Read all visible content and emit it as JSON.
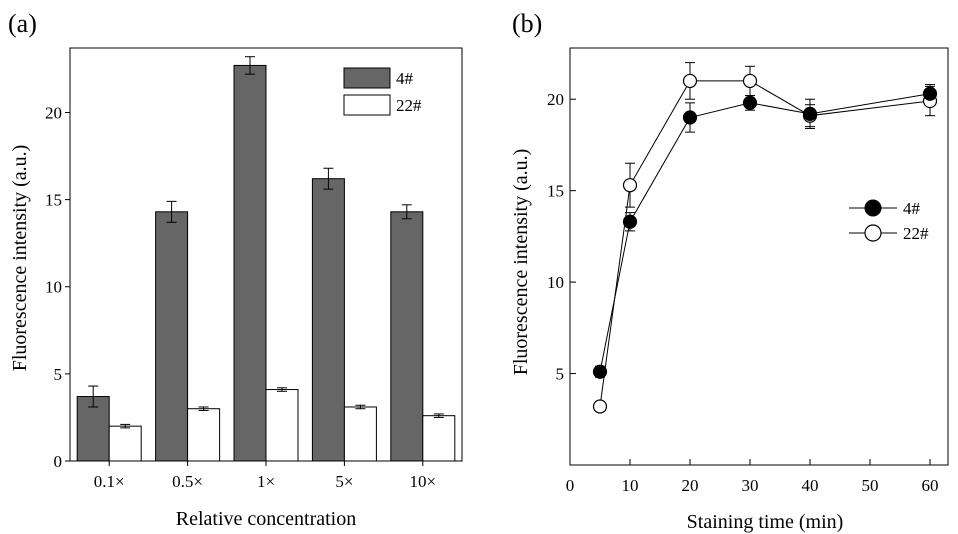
{
  "chart_data": [
    {
      "panel_label": "(a)",
      "type": "bar",
      "xlabel": "Relative concentration",
      "ylabel": "Fluorescence intensity (a.u.)",
      "categories": [
        "0.1×",
        "0.5×",
        "1×",
        "5×",
        "10×"
      ],
      "ylim": [
        0,
        23.7
      ],
      "yticks": [
        0,
        5,
        10,
        15,
        20
      ],
      "legend_position": "top-right",
      "series": [
        {
          "name": "4#",
          "color": "#666666",
          "values": [
            3.7,
            14.3,
            22.7,
            16.2,
            14.3
          ],
          "errors": [
            0.6,
            0.6,
            0.5,
            0.6,
            0.4
          ]
        },
        {
          "name": "22#",
          "color": "#ffffff",
          "values": [
            2.0,
            3.0,
            4.1,
            3.1,
            2.6
          ],
          "errors": [
            0.1,
            0.1,
            0.1,
            0.1,
            0.1
          ]
        }
      ]
    },
    {
      "panel_label": "(b)",
      "type": "line",
      "xlabel": "Staining time (min)",
      "ylabel": "Fluorescence intensity (a.u.)",
      "xlim": [
        0,
        63
      ],
      "ylim": [
        0,
        22.8
      ],
      "xticks": [
        0,
        10,
        20,
        30,
        40,
        50,
        60
      ],
      "yticks": [
        5,
        10,
        15,
        20
      ],
      "legend_position": "right",
      "series": [
        {
          "name": "4#",
          "marker": "filled-circle",
          "x": [
            5,
            10,
            20,
            30,
            40,
            60
          ],
          "y": [
            5.1,
            13.3,
            19.0,
            19.8,
            19.2,
            20.3
          ],
          "errors": [
            0.3,
            0.5,
            0.8,
            0.4,
            0.8,
            0.5
          ]
        },
        {
          "name": "22#",
          "marker": "open-circle",
          "x": [
            5,
            10,
            20,
            30,
            40,
            60
          ],
          "y": [
            3.2,
            15.3,
            21.0,
            21.0,
            19.1,
            19.9
          ],
          "errors": [
            0.2,
            1.2,
            1.0,
            0.8,
            0.6,
            0.8
          ]
        }
      ]
    }
  ]
}
